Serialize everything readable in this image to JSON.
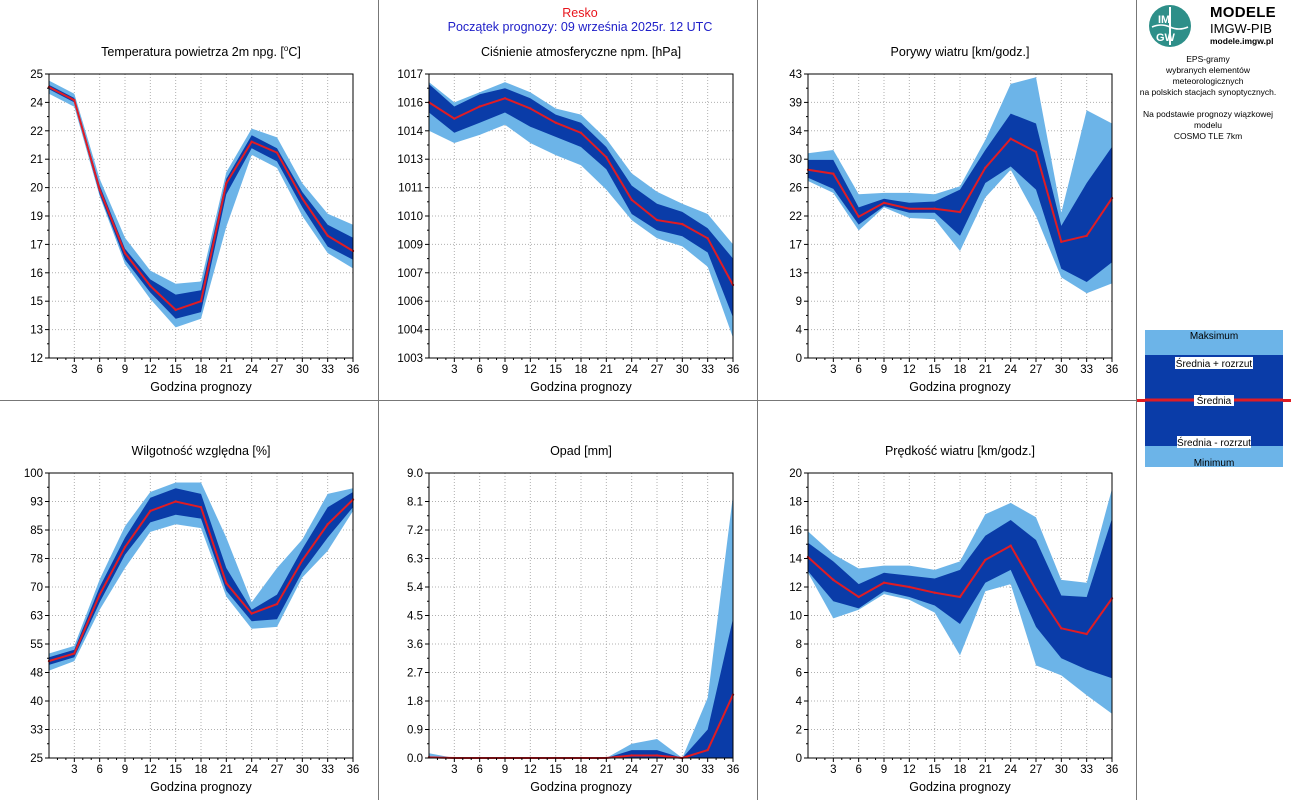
{
  "header": {
    "station": "Resko",
    "forecast_start": "Początek prognozy: 09 września 2025r. 12 UTC"
  },
  "logo": {
    "mark_top": "IM",
    "mark_bottom": "GW",
    "word1": "MODELE",
    "word2": "IMGW-PIB",
    "url": "modele.imgw.pl"
  },
  "info_lines": [
    "EPS-gramy",
    "wybranych elementów meteorologicznych",
    "na polskich stacjach  synoptycznych.",
    "",
    "Na podstawie prognozy wiązkowej modelu",
    "COSMO TLE 7km"
  ],
  "legend": {
    "max_label": "Maksimum",
    "mean_plus_label": "Średnia + rozrzut",
    "mean_label": "Średnia",
    "mean_minus_label": "Średnia - rozrzut",
    "min_label": "Minimum"
  },
  "colors": {
    "light_band": "#6cb4e8",
    "dark_band": "#0a3ca8",
    "mean_line": "#e01c24",
    "header_station": "#e8141c",
    "header_start": "#1e1ec8",
    "logo_green": "#2e8f89"
  },
  "chart_data": [
    {
      "type": "area",
      "title": "Temperatura powietrza 2m npg. [",
      "title_unit_sup": "o",
      "title_unit_tail": "C]",
      "xlabel": "Godzina prognozy",
      "x": [
        0,
        3,
        6,
        9,
        12,
        15,
        18,
        21,
        24,
        27,
        30,
        33,
        36
      ],
      "xticks": [
        "3",
        "6",
        "9",
        "12",
        "15",
        "18",
        "21",
        "24",
        "27",
        "30",
        "33",
        "36"
      ],
      "xlim": [
        0,
        36
      ],
      "ylim": [
        12,
        25
      ],
      "yticks": [
        "12",
        "13",
        "15",
        "16",
        "17",
        "19",
        "20",
        "21",
        "22",
        "24",
        "25"
      ],
      "grid": true,
      "series": [
        {
          "role": "maximum",
          "values": [
            24.7,
            24.1,
            20.2,
            17.5,
            16.0,
            15.4,
            15.5,
            20.5,
            22.5,
            22.1,
            20.0,
            18.6,
            18.1
          ]
        },
        {
          "role": "mean_plus_spread",
          "values": [
            24.5,
            23.9,
            19.9,
            17.0,
            15.6,
            14.9,
            15.1,
            20.2,
            22.2,
            21.6,
            19.6,
            18.1,
            17.5
          ]
        },
        {
          "role": "mean",
          "values": [
            24.4,
            23.8,
            19.7,
            16.8,
            15.3,
            14.2,
            14.6,
            20.0,
            21.9,
            21.4,
            19.3,
            17.6,
            16.9
          ]
        },
        {
          "role": "mean_minus_spread",
          "values": [
            24.3,
            23.7,
            19.5,
            16.5,
            15.0,
            13.8,
            14.1,
            19.5,
            21.6,
            21.0,
            18.9,
            17.1,
            16.5
          ]
        },
        {
          "role": "minimum",
          "values": [
            24.1,
            23.5,
            19.4,
            16.3,
            14.7,
            13.4,
            13.8,
            18.0,
            21.3,
            20.7,
            18.5,
            16.8,
            16.1
          ]
        }
      ]
    },
    {
      "type": "area",
      "title": "Ciśnienie atmosferyczne npm. [hPa]",
      "xlabel": "Godzina prognozy",
      "x": [
        0,
        3,
        6,
        9,
        12,
        15,
        18,
        21,
        24,
        27,
        30,
        33,
        36
      ],
      "xticks": [
        "3",
        "6",
        "9",
        "12",
        "15",
        "18",
        "21",
        "24",
        "27",
        "30",
        "33",
        "36"
      ],
      "xlim": [
        0,
        36
      ],
      "ylim": [
        1003,
        1017
      ],
      "yticks": [
        "1003",
        "1004",
        "1006",
        "1007",
        "1009",
        "1010",
        "1011",
        "1013",
        "1014",
        "1016",
        "1017"
      ],
      "grid": true,
      "series": [
        {
          "role": "maximum",
          "values": [
            1016.6,
            1015.6,
            1016.1,
            1016.6,
            1016.1,
            1015.3,
            1015.0,
            1013.8,
            1012.1,
            1011.2,
            1010.6,
            1010.1,
            1008.6
          ]
        },
        {
          "role": "mean_plus_spread",
          "values": [
            1016.5,
            1015.4,
            1016.0,
            1016.3,
            1015.8,
            1015.0,
            1014.6,
            1013.4,
            1011.5,
            1010.6,
            1010.2,
            1009.4,
            1007.9
          ]
        },
        {
          "role": "mean",
          "values": [
            1015.6,
            1014.8,
            1015.4,
            1015.8,
            1015.3,
            1014.6,
            1014.1,
            1012.9,
            1010.8,
            1009.8,
            1009.6,
            1008.9,
            1006.6
          ]
        },
        {
          "role": "mean_minus_spread",
          "values": [
            1015.1,
            1014.1,
            1014.6,
            1015.1,
            1014.4,
            1013.9,
            1013.4,
            1012.3,
            1010.1,
            1009.3,
            1009.0,
            1008.2,
            1005.0
          ]
        },
        {
          "role": "minimum",
          "values": [
            1014.2,
            1013.6,
            1014.0,
            1014.5,
            1013.6,
            1013.0,
            1012.5,
            1011.3,
            1009.8,
            1008.9,
            1008.5,
            1007.5,
            1004.0
          ]
        }
      ]
    },
    {
      "type": "area",
      "title": "Porywy wiatru [km/godz.]",
      "xlabel": "Godzina prognozy",
      "x": [
        0,
        3,
        6,
        9,
        12,
        15,
        18,
        21,
        24,
        27,
        30,
        33,
        36
      ],
      "xticks": [
        "3",
        "6",
        "9",
        "12",
        "15",
        "18",
        "21",
        "24",
        "27",
        "30",
        "33",
        "36"
      ],
      "xlim": [
        0,
        36
      ],
      "ylim": [
        0,
        43
      ],
      "yticks": [
        "0",
        "4",
        "9",
        "13",
        "17",
        "22",
        "26",
        "30",
        "34",
        "39",
        "43"
      ],
      "grid": true,
      "series": [
        {
          "role": "maximum",
          "values": [
            31.0,
            31.5,
            24.8,
            25.0,
            25.0,
            24.8,
            26.0,
            33.0,
            41.5,
            42.5,
            22.0,
            37.5,
            35.5
          ]
        },
        {
          "role": "mean_plus_spread",
          "values": [
            30.0,
            30.0,
            22.8,
            24.1,
            23.5,
            23.7,
            25.5,
            31.5,
            37.0,
            35.5,
            20.0,
            26.5,
            32.0
          ]
        },
        {
          "role": "mean",
          "values": [
            28.5,
            27.9,
            21.4,
            23.5,
            22.6,
            22.6,
            22.1,
            28.8,
            33.2,
            31.2,
            17.6,
            18.5,
            24.2
          ]
        },
        {
          "role": "mean_minus_spread",
          "values": [
            27.3,
            25.6,
            20.2,
            23.0,
            22.0,
            22.0,
            18.5,
            26.5,
            29.0,
            25.5,
            13.5,
            11.5,
            14.5
          ]
        },
        {
          "role": "minimum",
          "values": [
            26.8,
            25.0,
            19.3,
            22.8,
            21.2,
            21.0,
            16.2,
            24.3,
            28.5,
            21.5,
            12.2,
            9.8,
            11.3
          ]
        }
      ]
    },
    {
      "type": "area",
      "title": "Wilgotność względna [%]",
      "xlabel": "Godzina prognozy",
      "x": [
        0,
        3,
        6,
        9,
        12,
        15,
        18,
        21,
        24,
        27,
        30,
        33,
        36
      ],
      "xticks": [
        "3",
        "6",
        "9",
        "12",
        "15",
        "18",
        "21",
        "24",
        "27",
        "30",
        "33",
        "36"
      ],
      "xlim": [
        0,
        36
      ],
      "ylim": [
        25,
        100
      ],
      "yticks": [
        "25",
        "33",
        "40",
        "48",
        "55",
        "63",
        "70",
        "78",
        "85",
        "93",
        "100"
      ],
      "grid": true,
      "series": [
        {
          "role": "maximum",
          "values": [
            52.5,
            54.5,
            72.0,
            86.0,
            95.0,
            97.5,
            97.5,
            83.0,
            66.0,
            75.0,
            82.5,
            94.5,
            96.0
          ]
        },
        {
          "role": "mean_plus_spread",
          "values": [
            51.5,
            53.5,
            70.0,
            83.0,
            93.5,
            96.0,
            94.5,
            75.0,
            64.0,
            68.0,
            80.0,
            91.0,
            95.0
          ]
        },
        {
          "role": "mean",
          "values": [
            50.5,
            52.5,
            68.0,
            80.5,
            90.0,
            92.5,
            91.0,
            71.0,
            63.0,
            65.5,
            77.0,
            86.5,
            93.0
          ]
        },
        {
          "role": "mean_minus_spread",
          "values": [
            49.5,
            51.5,
            66.0,
            78.5,
            87.0,
            89.0,
            88.0,
            69.0,
            61.0,
            61.5,
            74.0,
            83.0,
            91.0
          ]
        },
        {
          "role": "minimum",
          "values": [
            48.0,
            50.5,
            64.0,
            75.0,
            84.5,
            86.5,
            85.5,
            67.5,
            59.0,
            59.5,
            72.5,
            79.5,
            90.0
          ]
        }
      ]
    },
    {
      "type": "area",
      "title": "Opad [mm]",
      "xlabel": "Godzina prognozy",
      "x": [
        0,
        3,
        6,
        9,
        12,
        15,
        18,
        21,
        24,
        27,
        30,
        33,
        36
      ],
      "xticks": [
        "3",
        "6",
        "9",
        "12",
        "15",
        "18",
        "21",
        "24",
        "27",
        "30",
        "33",
        "36"
      ],
      "xlim": [
        0,
        36
      ],
      "ylim": [
        0,
        9
      ],
      "yticks": [
        "0.0",
        "0.9",
        "1.8",
        "2.7",
        "3.6",
        "4.5",
        "5.4",
        "6.3",
        "7.2",
        "8.1",
        "9.0"
      ],
      "grid": true,
      "series": [
        {
          "role": "maximum",
          "values": [
            0.15,
            0.0,
            0.0,
            0.0,
            0.0,
            0.0,
            0.0,
            0.0,
            0.45,
            0.6,
            0.0,
            1.9,
            8.3
          ]
        },
        {
          "role": "mean_plus_spread",
          "values": [
            0.05,
            0.0,
            0.0,
            0.0,
            0.0,
            0.0,
            0.0,
            0.0,
            0.25,
            0.25,
            0.0,
            0.9,
            4.4
          ]
        },
        {
          "role": "mean",
          "values": [
            0.02,
            0.0,
            0.0,
            0.0,
            0.0,
            0.0,
            0.0,
            0.0,
            0.08,
            0.08,
            0.0,
            0.25,
            2.0
          ]
        },
        {
          "role": "mean_minus_spread",
          "values": [
            0.0,
            0.0,
            0.0,
            0.0,
            0.0,
            0.0,
            0.0,
            0.0,
            0.0,
            0.0,
            0.0,
            0.0,
            0.0
          ]
        },
        {
          "role": "minimum",
          "values": [
            0.0,
            0.0,
            0.0,
            0.0,
            0.0,
            0.0,
            0.0,
            0.0,
            0.0,
            0.0,
            0.0,
            0.0,
            0.0
          ]
        }
      ]
    },
    {
      "type": "area",
      "title": "Prędkość wiatru [km/godz.]",
      "xlabel": "Godzina prognozy",
      "x": [
        0,
        3,
        6,
        9,
        12,
        15,
        18,
        21,
        24,
        27,
        30,
        33,
        36
      ],
      "xticks": [
        "3",
        "6",
        "9",
        "12",
        "15",
        "18",
        "21",
        "24",
        "27",
        "30",
        "33",
        "36"
      ],
      "xlim": [
        0,
        36
      ],
      "ylim": [
        0,
        20
      ],
      "yticks": [
        "0",
        "2",
        "4",
        "6",
        "8",
        "10",
        "12",
        "14",
        "16",
        "18",
        "20"
      ],
      "grid": true,
      "series": [
        {
          "role": "maximum",
          "values": [
            15.9,
            14.3,
            13.3,
            13.5,
            13.5,
            13.2,
            13.8,
            17.1,
            17.9,
            16.9,
            12.5,
            12.3,
            18.9
          ]
        },
        {
          "role": "mean_plus_spread",
          "values": [
            15.1,
            13.8,
            12.2,
            13.0,
            12.8,
            12.6,
            13.2,
            15.6,
            16.7,
            15.3,
            11.4,
            11.3,
            16.8
          ]
        },
        {
          "role": "mean",
          "values": [
            14.1,
            12.5,
            11.3,
            12.3,
            12.0,
            11.6,
            11.3,
            13.9,
            14.9,
            11.8,
            9.1,
            8.7,
            11.2
          ]
        },
        {
          "role": "mean_minus_spread",
          "values": [
            13.1,
            11.0,
            10.5,
            11.7,
            11.3,
            10.7,
            9.4,
            12.3,
            13.2,
            9.2,
            7.0,
            6.2,
            5.6
          ]
        },
        {
          "role": "minimum",
          "values": [
            13.0,
            9.8,
            10.4,
            11.5,
            11.1,
            10.2,
            7.2,
            11.7,
            12.2,
            6.5,
            5.8,
            4.4,
            3.1
          ]
        }
      ]
    }
  ]
}
